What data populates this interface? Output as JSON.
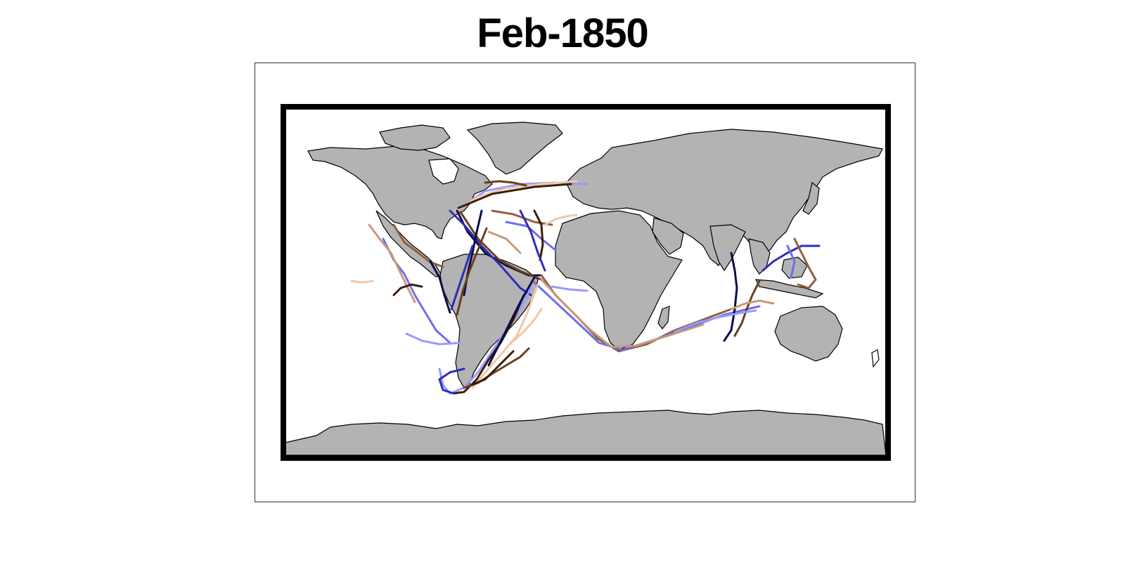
{
  "title": "Feb-1850",
  "map": {
    "land_color": "#b3b3b3",
    "frame_color": "#000000",
    "track_palette": [
      "#0a0d4a",
      "#2d2db8",
      "#6e6ef0",
      "#9999ff",
      "#3b1e0a",
      "#6b3e1e",
      "#8f6040",
      "#c49a78",
      "#f0c8a8"
    ],
    "track_count": 42
  }
}
